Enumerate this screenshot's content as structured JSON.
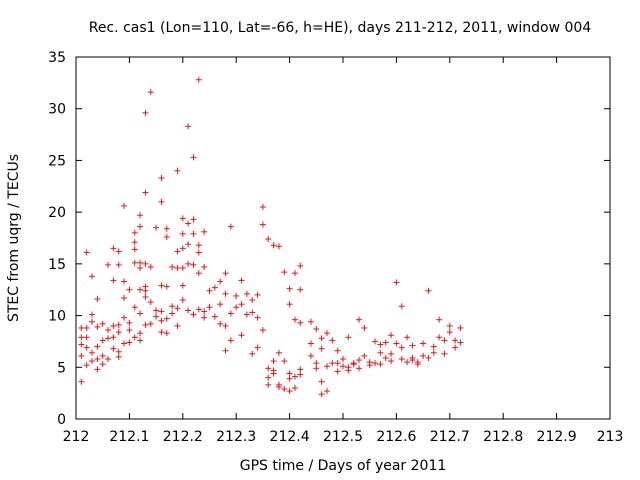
{
  "chart_data": {
    "type": "scatter",
    "title": "Rec. cas1 (Lon=110, Lat=-66, h=HE), days 211-212, 2011, window 004",
    "xlabel": "GPS time / Days of year 2011",
    "ylabel": "STEC from uqrg / TECUs",
    "xlim": [
      212,
      213
    ],
    "ylim": [
      0,
      35
    ],
    "xticks": [
      "212",
      "212.1",
      "212.2",
      "212.3",
      "212.4",
      "212.5",
      "212.6",
      "212.7",
      "212.8",
      "212.9",
      "213"
    ],
    "yticks": [
      "0",
      "5",
      "10",
      "15",
      "20",
      "25",
      "30",
      "35"
    ],
    "marker": "+",
    "color": "#e0191e",
    "grid": false,
    "points": [
      [
        212.01,
        3.6
      ],
      [
        212.01,
        6.1
      ],
      [
        212.01,
        7.2
      ],
      [
        212.01,
        7.9
      ],
      [
        212.01,
        8.8
      ],
      [
        212.02,
        5.2
      ],
      [
        212.02,
        6.9
      ],
      [
        212.02,
        7.9
      ],
      [
        212.02,
        8.8
      ],
      [
        212.02,
        16.1
      ],
      [
        212.03,
        5.6
      ],
      [
        212.03,
        6.4
      ],
      [
        212.03,
        9.4
      ],
      [
        212.03,
        10.1
      ],
      [
        212.03,
        13.8
      ],
      [
        212.04,
        4.8
      ],
      [
        212.04,
        5.8
      ],
      [
        212.04,
        7.0
      ],
      [
        212.04,
        8.9
      ],
      [
        212.04,
        11.6
      ],
      [
        212.05,
        5.3
      ],
      [
        212.05,
        6.1
      ],
      [
        212.05,
        7.6
      ],
      [
        212.05,
        9.2
      ],
      [
        212.06,
        5.8
      ],
      [
        212.06,
        7.8
      ],
      [
        212.06,
        8.6
      ],
      [
        212.06,
        14.9
      ],
      [
        212.07,
        6.8
      ],
      [
        212.07,
        7.9
      ],
      [
        212.07,
        9.0
      ],
      [
        212.07,
        13.4
      ],
      [
        212.07,
        16.5
      ],
      [
        212.08,
        6.0
      ],
      [
        212.08,
        6.5
      ],
      [
        212.08,
        8.4
      ],
      [
        212.08,
        9.1
      ],
      [
        212.08,
        14.9
      ],
      [
        212.08,
        16.2
      ],
      [
        212.09,
        7.3
      ],
      [
        212.09,
        9.8
      ],
      [
        212.09,
        11.7
      ],
      [
        212.09,
        13.3
      ],
      [
        212.09,
        20.6
      ],
      [
        212.1,
        7.4
      ],
      [
        212.1,
        8.6
      ],
      [
        212.1,
        9.3
      ],
      [
        212.1,
        12.5
      ],
      [
        212.11,
        7.9
      ],
      [
        212.11,
        10.8
      ],
      [
        212.11,
        15.1
      ],
      [
        212.11,
        16.4
      ],
      [
        212.11,
        17.1
      ],
      [
        212.11,
        18.0
      ],
      [
        212.12,
        7.6
      ],
      [
        212.12,
        8.3
      ],
      [
        212.12,
        10.2
      ],
      [
        212.12,
        12.5
      ],
      [
        212.12,
        14.6
      ],
      [
        212.12,
        15.1
      ],
      [
        212.12,
        18.6
      ],
      [
        212.12,
        19.7
      ],
      [
        212.13,
        9.1
      ],
      [
        212.13,
        11.8
      ],
      [
        212.13,
        12.4
      ],
      [
        212.13,
        12.8
      ],
      [
        212.13,
        15.0
      ],
      [
        212.13,
        21.9
      ],
      [
        212.13,
        29.6
      ],
      [
        212.14,
        9.2
      ],
      [
        212.14,
        11.3
      ],
      [
        212.14,
        14.7
      ],
      [
        212.14,
        31.6
      ],
      [
        212.15,
        9.9
      ],
      [
        212.15,
        10.5
      ],
      [
        212.15,
        18.5
      ],
      [
        212.16,
        8.4
      ],
      [
        212.16,
        9.5
      ],
      [
        212.16,
        10.4
      ],
      [
        212.16,
        12.9
      ],
      [
        212.16,
        21.0
      ],
      [
        212.16,
        23.3
      ],
      [
        212.17,
        8.3
      ],
      [
        212.17,
        9.7
      ],
      [
        212.17,
        12.8
      ],
      [
        212.17,
        17.6
      ],
      [
        212.17,
        18.4
      ],
      [
        212.18,
        10.2
      ],
      [
        212.18,
        10.9
      ],
      [
        212.18,
        14.7
      ],
      [
        212.19,
        9.0
      ],
      [
        212.19,
        10.7
      ],
      [
        212.19,
        14.6
      ],
      [
        212.19,
        16.2
      ],
      [
        212.19,
        24.0
      ],
      [
        212.2,
        11.5
      ],
      [
        212.2,
        12.9
      ],
      [
        212.2,
        14.6
      ],
      [
        212.2,
        16.5
      ],
      [
        212.2,
        17.9
      ],
      [
        212.2,
        19.4
      ],
      [
        212.21,
        10.5
      ],
      [
        212.21,
        15.0
      ],
      [
        212.21,
        16.9
      ],
      [
        212.21,
        18.9
      ],
      [
        212.21,
        28.3
      ],
      [
        212.22,
        10.1
      ],
      [
        212.22,
        14.9
      ],
      [
        212.22,
        17.9
      ],
      [
        212.22,
        19.3
      ],
      [
        212.22,
        25.3
      ],
      [
        212.23,
        10.6
      ],
      [
        212.23,
        14.1
      ],
      [
        212.23,
        16.1
      ],
      [
        212.23,
        16.8
      ],
      [
        212.23,
        32.8
      ],
      [
        212.24,
        9.8
      ],
      [
        212.24,
        10.4
      ],
      [
        212.24,
        14.7
      ],
      [
        212.24,
        18.1
      ],
      [
        212.25,
        10.8
      ],
      [
        212.25,
        12.4
      ],
      [
        212.26,
        9.9
      ],
      [
        212.26,
        12.7
      ],
      [
        212.27,
        9.2
      ],
      [
        212.27,
        11.1
      ],
      [
        212.27,
        13.3
      ],
      [
        212.28,
        9.0
      ],
      [
        212.28,
        12.1
      ],
      [
        212.28,
        14.1
      ],
      [
        212.28,
        6.6
      ],
      [
        212.29,
        7.6
      ],
      [
        212.29,
        10.2
      ],
      [
        212.29,
        18.6
      ],
      [
        212.3,
        10.8
      ],
      [
        212.3,
        11.9
      ],
      [
        212.31,
        8.1
      ],
      [
        212.31,
        11.1
      ],
      [
        212.31,
        13.4
      ],
      [
        212.32,
        10.1
      ],
      [
        212.32,
        12.1
      ],
      [
        212.33,
        10.3
      ],
      [
        212.33,
        11.5
      ],
      [
        212.33,
        6.3
      ],
      [
        212.34,
        6.9
      ],
      [
        212.34,
        9.8
      ],
      [
        212.34,
        12.0
      ],
      [
        212.35,
        20.5
      ],
      [
        212.35,
        18.8
      ],
      [
        212.35,
        8.6
      ],
      [
        212.36,
        4.9
      ],
      [
        212.36,
        3.3
      ],
      [
        212.36,
        4.0
      ],
      [
        212.36,
        17.4
      ],
      [
        212.37,
        4.4
      ],
      [
        212.37,
        4.7
      ],
      [
        212.37,
        5.6
      ],
      [
        212.37,
        16.8
      ],
      [
        212.38,
        3.1
      ],
      [
        212.38,
        3.3
      ],
      [
        212.38,
        6.4
      ],
      [
        212.38,
        16.7
      ],
      [
        212.39,
        2.9
      ],
      [
        212.39,
        5.6
      ],
      [
        212.39,
        14.2
      ],
      [
        212.4,
        2.7
      ],
      [
        212.4,
        3.9
      ],
      [
        212.4,
        4.4
      ],
      [
        212.4,
        12.6
      ],
      [
        212.4,
        11.1
      ],
      [
        212.41,
        3.0
      ],
      [
        212.41,
        4.1
      ],
      [
        212.41,
        9.6
      ],
      [
        212.41,
        14.1
      ],
      [
        212.42,
        4.3
      ],
      [
        212.42,
        9.3
      ],
      [
        212.42,
        4.8
      ],
      [
        212.42,
        12.5
      ],
      [
        212.42,
        14.8
      ],
      [
        212.44,
        9.4
      ],
      [
        212.44,
        6.1
      ],
      [
        212.44,
        7.3
      ],
      [
        212.45,
        8.7
      ],
      [
        212.45,
        4.9
      ],
      [
        212.45,
        5.4
      ],
      [
        212.46,
        2.4
      ],
      [
        212.46,
        3.6
      ],
      [
        212.46,
        6.8
      ],
      [
        212.46,
        7.8
      ],
      [
        212.47,
        2.7
      ],
      [
        212.47,
        5.1
      ],
      [
        212.47,
        8.3
      ],
      [
        212.48,
        5.4
      ],
      [
        212.48,
        7.6
      ],
      [
        212.49,
        5.4
      ],
      [
        212.49,
        6.6
      ],
      [
        212.49,
        4.6
      ],
      [
        212.5,
        5.1
      ],
      [
        212.5,
        5.8
      ],
      [
        212.51,
        5.0
      ],
      [
        212.51,
        4.7
      ],
      [
        212.51,
        7.9
      ],
      [
        212.52,
        5.3
      ],
      [
        212.52,
        5.4
      ],
      [
        212.53,
        4.9
      ],
      [
        212.53,
        5.7
      ],
      [
        212.53,
        9.6
      ],
      [
        212.54,
        6.1
      ],
      [
        212.54,
        8.8
      ],
      [
        212.55,
        5.2
      ],
      [
        212.55,
        5.5
      ],
      [
        212.56,
        5.4
      ],
      [
        212.56,
        7.5
      ],
      [
        212.57,
        6.4
      ],
      [
        212.57,
        7.2
      ],
      [
        212.57,
        5.3
      ],
      [
        212.58,
        5.9
      ],
      [
        212.58,
        7.4
      ],
      [
        212.59,
        6.3
      ],
      [
        212.59,
        8.1
      ],
      [
        212.59,
        5.6
      ],
      [
        212.6,
        7.3
      ],
      [
        212.6,
        13.2
      ],
      [
        212.61,
        5.8
      ],
      [
        212.61,
        6.9
      ],
      [
        212.61,
        10.9
      ],
      [
        212.62,
        5.5
      ],
      [
        212.62,
        7.9
      ],
      [
        212.63,
        5.9
      ],
      [
        212.63,
        5.7
      ],
      [
        212.63,
        7.1
      ],
      [
        212.64,
        5.5
      ],
      [
        212.64,
        5.3
      ],
      [
        212.65,
        6.1
      ],
      [
        212.65,
        7.3
      ],
      [
        212.66,
        5.9
      ],
      [
        212.66,
        12.4
      ],
      [
        212.67,
        6.4
      ],
      [
        212.67,
        7.0
      ],
      [
        212.68,
        7.9
      ],
      [
        212.68,
        9.6
      ],
      [
        212.69,
        6.3
      ],
      [
        212.69,
        7.6
      ],
      [
        212.7,
        8.4
      ],
      [
        212.7,
        9.0
      ],
      [
        212.71,
        6.9
      ],
      [
        212.71,
        7.6
      ],
      [
        212.72,
        7.4
      ],
      [
        212.72,
        8.8
      ]
    ]
  }
}
